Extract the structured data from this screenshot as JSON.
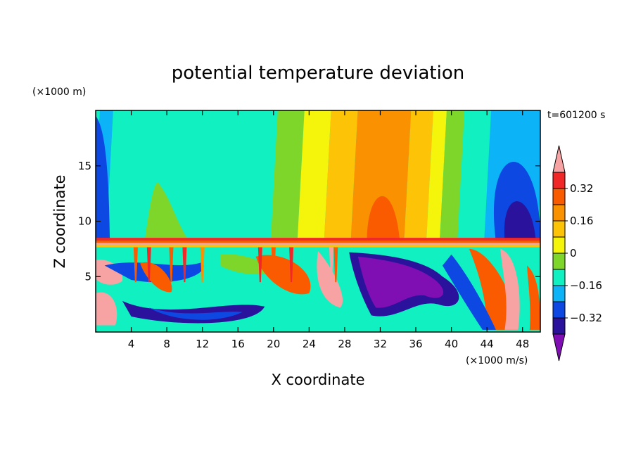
{
  "chart_data": {
    "type": "heatmap",
    "title": "potential temperature deviation",
    "xlabel": "X coordinate",
    "ylabel": "Z coordinate",
    "x_unit": "(×1000 m/s)",
    "y_unit": "(×1000 m)",
    "time_label": "t=601200 s",
    "xlim": [
      0,
      50
    ],
    "ylim": [
      0,
      20
    ],
    "x_ticks": [
      4,
      8,
      12,
      16,
      20,
      24,
      28,
      32,
      36,
      40,
      44,
      48
    ],
    "y_ticks": [
      5,
      10,
      15
    ],
    "colorbar": {
      "levels": [
        -0.4,
        -0.32,
        -0.24,
        -0.16,
        -0.08,
        0,
        0.08,
        0.16,
        0.24,
        0.32,
        0.4
      ],
      "labels": [
        "0.32",
        "0.16",
        "0",
        "−0.16",
        "−0.32"
      ],
      "label_values": [
        0.32,
        0.16,
        0,
        -0.16,
        -0.32
      ],
      "colors": [
        "#7f0fb3",
        "#2a129c",
        "#0d48e3",
        "#0db3f7",
        "#10f0c0",
        "#7fd62b",
        "#f5f50c",
        "#fdc307",
        "#fa9100",
        "#fa5a00",
        "#f02828",
        "#f7a3a3"
      ]
    },
    "bands": [
      {
        "x": [
          0,
          1.5
        ],
        "c": 3
      },
      {
        "x": [
          1.5,
          20
        ],
        "c": 4
      },
      {
        "x": [
          20,
          23
        ],
        "c": 5
      },
      {
        "x": [
          23,
          26
        ],
        "c": 6
      },
      {
        "x": [
          26,
          29
        ],
        "c": 7
      },
      {
        "x": [
          29,
          35
        ],
        "c": 8
      },
      {
        "x": [
          35,
          37.5
        ],
        "c": 7
      },
      {
        "x": [
          37.5,
          39
        ],
        "c": 6
      },
      {
        "x": [
          39,
          41
        ],
        "c": 5
      },
      {
        "x": [
          41,
          44
        ],
        "c": 4
      },
      {
        "x": [
          44,
          50
        ],
        "c": 3
      }
    ]
  }
}
